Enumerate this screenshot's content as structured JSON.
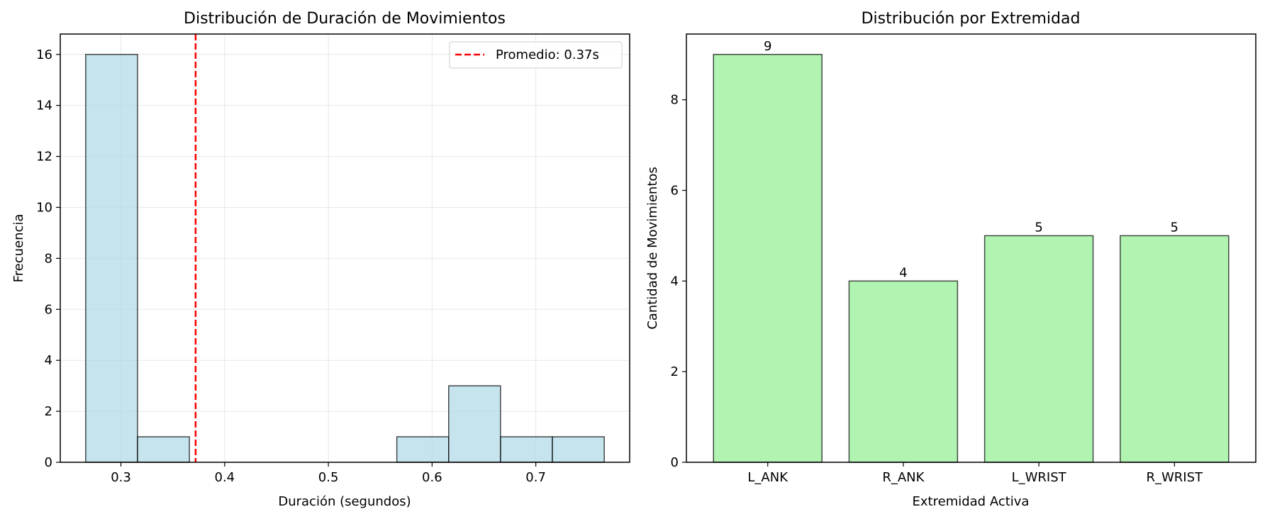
{
  "chart_data": [
    {
      "type": "bar",
      "title": "Distribución de Duración de Movimientos",
      "xlabel": "Duración (segundos)",
      "ylabel": "Frecuencia",
      "xlim": [
        0.2415,
        0.7905
      ],
      "ylim": [
        0,
        16.8
      ],
      "xticks": [
        0.3,
        0.4,
        0.5,
        0.6,
        0.7
      ],
      "xtick_labels": [
        "0.3",
        "0.4",
        "0.5",
        "0.6",
        "0.7"
      ],
      "yticks": [
        0,
        2,
        4,
        6,
        8,
        10,
        12,
        14,
        16
      ],
      "ytick_labels": [
        "0",
        "2",
        "4",
        "6",
        "8",
        "10",
        "12",
        "14",
        "16"
      ],
      "bins": [
        {
          "x0": 0.266,
          "x1": 0.316,
          "count": 16
        },
        {
          "x0": 0.316,
          "x1": 0.366,
          "count": 1
        },
        {
          "x0": 0.366,
          "x1": 0.416,
          "count": 0
        },
        {
          "x0": 0.416,
          "x1": 0.466,
          "count": 0
        },
        {
          "x0": 0.466,
          "x1": 0.516,
          "count": 0
        },
        {
          "x0": 0.516,
          "x1": 0.566,
          "count": 0
        },
        {
          "x0": 0.566,
          "x1": 0.616,
          "count": 1
        },
        {
          "x0": 0.616,
          "x1": 0.666,
          "count": 3
        },
        {
          "x0": 0.666,
          "x1": 0.716,
          "count": 1
        },
        {
          "x0": 0.716,
          "x1": 0.766,
          "count": 1
        }
      ],
      "mean_line": {
        "x": 0.372,
        "label": "Promedio: 0.37s",
        "color": "#ff0000"
      },
      "legend": "top-right",
      "grid": true,
      "bar_color": "#add8e6",
      "edge_color": "#000000"
    },
    {
      "type": "bar",
      "title": "Distribución por Extremidad",
      "xlabel": "Extremidad Activa",
      "ylabel": "Cantidad de Movimientos",
      "categories": [
        "L_ANK",
        "R_ANK",
        "L_WRIST",
        "R_WRIST"
      ],
      "values": [
        9,
        4,
        5,
        5
      ],
      "data_labels": [
        "9",
        "4",
        "5",
        "5"
      ],
      "ylim": [
        0,
        9.45
      ],
      "yticks": [
        0,
        2,
        4,
        6,
        8
      ],
      "ytick_labels": [
        "0",
        "2",
        "4",
        "6",
        "8"
      ],
      "grid": false,
      "bar_color": "#90ee90",
      "edge_color": "#000000"
    }
  ]
}
